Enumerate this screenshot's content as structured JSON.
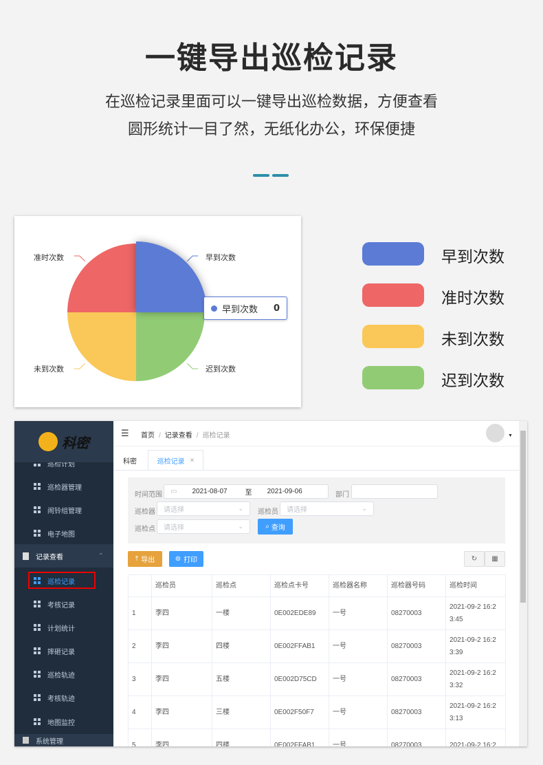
{
  "header": {
    "title": "一键导出巡检记录",
    "subtitle_lines": [
      "在巡检记录里面可以一键导出巡检数据，方便查看",
      "圆形统计一目了然，无纸化办公，环保便捷"
    ],
    "accent": "#2b8fa8"
  },
  "chart_data": {
    "type": "pie",
    "categories": [
      "早到次数",
      "迟到次数",
      "未到次数",
      "准时次数"
    ],
    "values": [
      0,
      0,
      0,
      0
    ],
    "colors": [
      "#5b7bd5",
      "#91cc75",
      "#fac858",
      "#ee6666"
    ],
    "tooltip": {
      "label": "早到次数",
      "value": "0"
    },
    "legend_placement": "right"
  },
  "legend": [
    {
      "label": "早到次数",
      "color": "#5b7bd5"
    },
    {
      "label": "准时次数",
      "color": "#ee6666"
    },
    {
      "label": "未到次数",
      "color": "#fac858"
    },
    {
      "label": "迟到次数",
      "color": "#91cc75"
    }
  ],
  "app": {
    "logo_text": "科密",
    "sidebar": {
      "items": [
        {
          "label": "巡检计划"
        },
        {
          "label": "巡检器管理"
        },
        {
          "label": "闹铃组管理"
        },
        {
          "label": "电子地图"
        }
      ],
      "group": "记录查看",
      "sub_items": [
        {
          "label": "巡检记录"
        },
        {
          "label": "考核记录"
        },
        {
          "label": "计划统计"
        },
        {
          "label": "摔砸记录"
        },
        {
          "label": "巡检轨迹"
        },
        {
          "label": "考核轨迹"
        },
        {
          "label": "地图监控"
        }
      ],
      "group2": "系统管理"
    },
    "breadcrumb": [
      "首页",
      "记录查看",
      "巡检记录"
    ],
    "tabs": [
      {
        "label": "科密"
      },
      {
        "label": "巡检记录",
        "close": "×"
      }
    ],
    "filter": {
      "time_label": "时间范围",
      "date_from": "2021-08-07",
      "to": "至",
      "date_to": "2021-09-06",
      "dept_label": "部门",
      "device_label": "巡检器",
      "person_label": "巡检员",
      "point_label": "巡检点",
      "placeholder": "请选择",
      "query": "查询"
    },
    "actions": {
      "export": "导出",
      "print": "打印"
    },
    "table": {
      "headers": [
        "",
        "巡检员",
        "巡检点",
        "巡检点卡号",
        "巡检器名称",
        "巡检器号码",
        "巡检时间"
      ],
      "rows": [
        [
          "1",
          "李四",
          "一楼",
          "0E002EDE89",
          "一号",
          "08270003",
          "2021-09-2 16:2",
          "3:45"
        ],
        [
          "2",
          "李四",
          "四楼",
          "0E002FFAB1",
          "一号",
          "08270003",
          "2021-09-2 16:2",
          "3:39"
        ],
        [
          "3",
          "李四",
          "五楼",
          "0E002D75CD",
          "一号",
          "08270003",
          "2021-09-2 16:2",
          "3:32"
        ],
        [
          "4",
          "李四",
          "三楼",
          "0E002F50F7",
          "一号",
          "08270003",
          "2021-09-2 16:2",
          "3:13"
        ],
        [
          "5",
          "李四",
          "四楼",
          "0E002FFAB1",
          "一号",
          "08270003",
          "2021-09-2 16:2",
          ""
        ]
      ]
    }
  }
}
